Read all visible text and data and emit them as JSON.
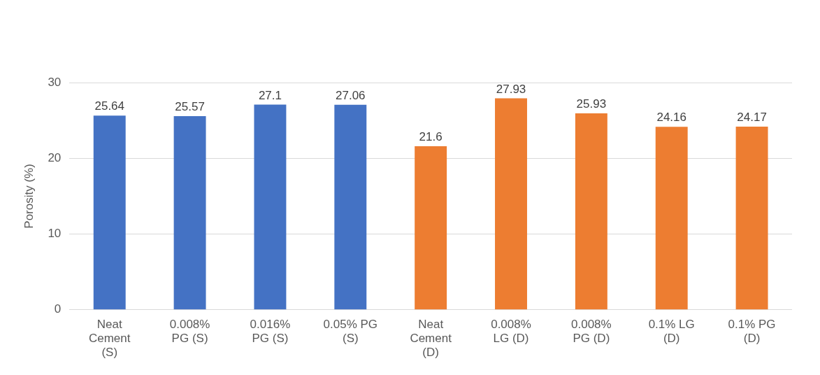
{
  "chart_data": {
    "type": "bar",
    "ylabel": "Porosity (%)",
    "categories": [
      "Neat Cement (S)",
      "0.008% PG (S)",
      "0.016% PG (S)",
      "0.05% PG (S)",
      "Neat Cement (D)",
      "0.008% LG (D)",
      "0.008% PG (D)",
      "0.1% LG (D)",
      "0.1% PG (D)"
    ],
    "values": [
      25.64,
      25.57,
      27.1,
      27.06,
      21.6,
      27.93,
      25.93,
      24.16,
      24.17
    ],
    "colors": [
      "#4472c4",
      "#4472c4",
      "#4472c4",
      "#4472c4",
      "#ed7d31",
      "#ed7d31",
      "#ed7d31",
      "#ed7d31",
      "#ed7d31"
    ],
    "ylim": [
      0,
      30
    ],
    "yticks": [
      0,
      10,
      20,
      30
    ],
    "grid": "y",
    "data_labels": true
  }
}
